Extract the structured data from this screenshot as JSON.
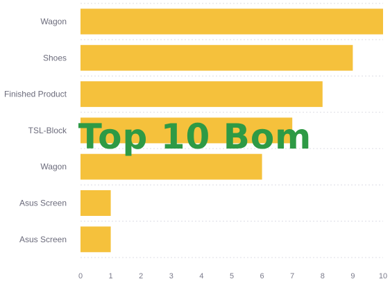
{
  "chart_data": {
    "type": "bar",
    "orientation": "horizontal",
    "title": "Top 10 Bom",
    "categories": [
      "Wagon",
      "Shoes",
      "Finished Product",
      "TSL-Block",
      "Wagon",
      "Asus Screen",
      "Asus Screen"
    ],
    "values": [
      10,
      9,
      8,
      7,
      6,
      1,
      1
    ],
    "xlim": [
      0,
      10
    ],
    "xticks": [
      0,
      1,
      2,
      3,
      4,
      5,
      6,
      7,
      8,
      9,
      10
    ],
    "grid": "dotted horizontal",
    "legend": "none",
    "bar_color": "#f5c13c",
    "title_color": "#2e9a45"
  }
}
